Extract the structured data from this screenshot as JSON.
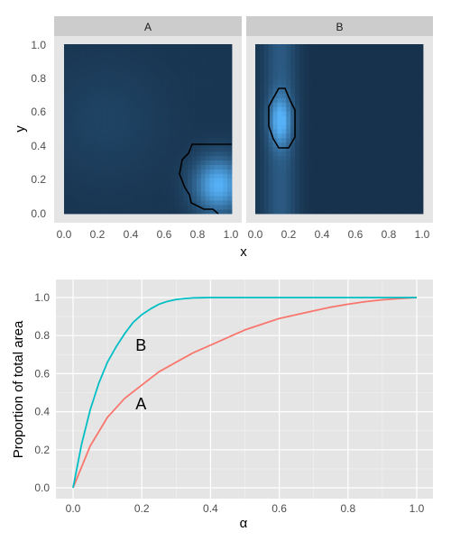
{
  "chart_data": [
    {
      "type": "heatmap",
      "panels": [
        {
          "label": "A",
          "hotspot": {
            "x": 0.92,
            "y": 0.17
          },
          "contour_level": 0.5
        },
        {
          "label": "B",
          "hotspot": {
            "x": 0.15,
            "y": 0.55
          },
          "contour_level": 0.5
        }
      ],
      "xlabel": "x",
      "ylabel": "y",
      "xlim": [
        0,
        1
      ],
      "ylim": [
        0,
        1
      ],
      "xticks": [
        "0.0",
        "0.2",
        "0.4",
        "0.6",
        "0.8",
        "1.0"
      ],
      "yticks": [
        "0.0",
        "0.2",
        "0.4",
        "0.6",
        "0.8",
        "1.0"
      ],
      "colors": {
        "low": "#132b43",
        "high": "#56b1f7",
        "strip": "#cccccc",
        "panel_bg": "#e5e5e5",
        "contour": "#000000"
      }
    },
    {
      "type": "line",
      "xlabel": "α",
      "ylabel": "Proportion of total area",
      "xlim": [
        0,
        1
      ],
      "ylim": [
        0,
        1
      ],
      "xticks": [
        "0.0",
        "0.2",
        "0.4",
        "0.6",
        "0.8",
        "1.0"
      ],
      "yticks": [
        "0.0",
        "0.2",
        "0.4",
        "0.6",
        "0.8",
        "1.0"
      ],
      "grid": true,
      "series": [
        {
          "name": "A",
          "color": "#f8766d",
          "x": [
            0,
            0.05,
            0.1,
            0.15,
            0.2,
            0.25,
            0.3,
            0.35,
            0.4,
            0.45,
            0.5,
            0.55,
            0.6,
            0.65,
            0.7,
            0.75,
            0.8,
            0.85,
            0.9,
            0.95,
            1.0
          ],
          "y": [
            0.0,
            0.22,
            0.37,
            0.47,
            0.54,
            0.61,
            0.66,
            0.71,
            0.75,
            0.79,
            0.83,
            0.86,
            0.89,
            0.91,
            0.93,
            0.95,
            0.965,
            0.978,
            0.988,
            0.995,
            1.0
          ]
        },
        {
          "name": "B",
          "color": "#00bfc4",
          "x": [
            0,
            0.025,
            0.05,
            0.075,
            0.1,
            0.125,
            0.15,
            0.175,
            0.2,
            0.225,
            0.25,
            0.275,
            0.3,
            0.325,
            0.35,
            0.375,
            0.4,
            0.5,
            0.6,
            0.7,
            0.8,
            0.9,
            1.0
          ],
          "y": [
            0.0,
            0.23,
            0.41,
            0.55,
            0.66,
            0.74,
            0.81,
            0.87,
            0.91,
            0.94,
            0.965,
            0.98,
            0.99,
            0.995,
            0.998,
            0.999,
            1.0,
            1.0,
            1.0,
            1.0,
            1.0,
            1.0,
            1.0
          ]
        }
      ],
      "annotations": [
        {
          "text": "B",
          "x": 0.2,
          "y": 0.75
        },
        {
          "text": "A",
          "x": 0.2,
          "y": 0.44
        }
      ]
    }
  ]
}
